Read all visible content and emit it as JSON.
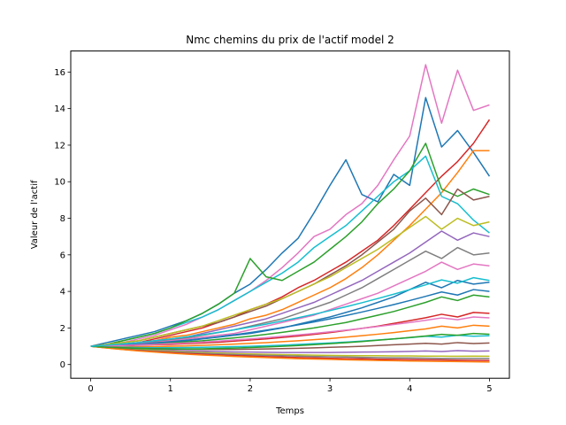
{
  "chart_data": {
    "type": "line",
    "title": "Nmc chemins du prix de l'actif model 2",
    "xlabel": "Temps",
    "ylabel": "Valeur de l'actif",
    "xlim": [
      -0.25,
      5.25
    ],
    "ylim": [
      -0.75,
      17.15
    ],
    "xticks": [
      0,
      1,
      2,
      3,
      4,
      5
    ],
    "yticks": [
      0,
      2,
      4,
      6,
      8,
      10,
      12,
      14,
      16
    ],
    "grid": false,
    "legend": "none",
    "x": [
      0,
      0.2,
      0.4,
      0.6,
      0.8,
      1.0,
      1.2,
      1.4,
      1.6,
      1.8,
      2.0,
      2.2,
      2.4,
      2.6,
      2.8,
      3.0,
      3.2,
      3.4,
      3.6,
      3.8,
      4.0,
      4.2,
      4.4,
      4.6,
      4.8,
      5.0
    ],
    "series": [
      {
        "color": "#e377c2",
        "values": [
          1.0,
          1.1,
          1.2,
          1.4,
          1.6,
          1.9,
          2.2,
          2.6,
          3.0,
          3.5,
          4.0,
          4.6,
          5.3,
          6.1,
          7.0,
          7.4,
          8.2,
          8.8,
          9.8,
          11.2,
          12.5,
          16.4,
          13.2,
          16.1,
          13.9,
          14.2
        ]
      },
      {
        "color": "#1f77b4",
        "values": [
          1.0,
          1.2,
          1.4,
          1.6,
          1.8,
          2.1,
          2.4,
          2.8,
          3.3,
          3.9,
          4.4,
          5.2,
          6.1,
          6.9,
          8.3,
          9.8,
          11.2,
          9.3,
          8.9,
          10.4,
          9.8,
          14.6,
          11.9,
          12.8,
          11.6,
          10.3
        ]
      },
      {
        "color": "#d62728",
        "values": [
          1.0,
          1.0,
          1.1,
          1.2,
          1.4,
          1.6,
          1.8,
          2.0,
          2.3,
          2.6,
          3.0,
          3.3,
          3.7,
          4.2,
          4.6,
          5.1,
          5.6,
          6.2,
          6.8,
          7.6,
          8.5,
          9.4,
          10.3,
          11.1,
          12.1,
          13.4
        ]
      },
      {
        "color": "#ff7f0e",
        "values": [
          1.0,
          1.0,
          1.1,
          1.2,
          1.3,
          1.5,
          1.6,
          1.8,
          2.0,
          2.2,
          2.5,
          2.7,
          3.0,
          3.4,
          3.8,
          4.2,
          4.7,
          5.3,
          6.0,
          6.8,
          7.6,
          8.5,
          9.4,
          10.5,
          11.7,
          11.7
        ]
      },
      {
        "color": "#17becf",
        "values": [
          1.0,
          1.1,
          1.3,
          1.5,
          1.7,
          2.0,
          2.3,
          2.6,
          3.0,
          3.5,
          4.0,
          4.5,
          5.0,
          5.6,
          6.4,
          7.0,
          7.6,
          8.4,
          9.2,
          10.0,
          10.6,
          11.4,
          9.2,
          8.8,
          7.9,
          7.2
        ]
      },
      {
        "color": "#2ca02c",
        "values": [
          1.0,
          1.1,
          1.3,
          1.5,
          1.7,
          2.0,
          2.4,
          2.8,
          3.3,
          3.9,
          5.8,
          4.8,
          4.6,
          5.1,
          5.6,
          6.3,
          7.0,
          7.8,
          8.8,
          9.6,
          10.6,
          12.1,
          9.6,
          9.2,
          9.6,
          9.3
        ]
      },
      {
        "color": "#8c564b",
        "values": [
          1.0,
          1.1,
          1.2,
          1.3,
          1.5,
          1.7,
          1.9,
          2.1,
          2.3,
          2.6,
          2.9,
          3.2,
          3.6,
          4.0,
          4.4,
          4.9,
          5.4,
          6.0,
          6.7,
          7.4,
          8.4,
          9.1,
          8.2,
          9.6,
          9.0,
          9.2
        ]
      },
      {
        "color": "#bcbd22",
        "values": [
          1.0,
          1.1,
          1.2,
          1.3,
          1.5,
          1.7,
          1.9,
          2.1,
          2.4,
          2.7,
          3.0,
          3.3,
          3.6,
          4.0,
          4.4,
          4.8,
          5.3,
          5.8,
          6.3,
          6.9,
          7.5,
          8.1,
          7.4,
          8.0,
          7.6,
          7.8
        ]
      },
      {
        "color": "#9467bd",
        "values": [
          1.0,
          1.05,
          1.1,
          1.2,
          1.3,
          1.4,
          1.5,
          1.7,
          1.9,
          2.1,
          2.3,
          2.5,
          2.8,
          3.1,
          3.4,
          3.8,
          4.2,
          4.6,
          5.1,
          5.6,
          6.1,
          6.7,
          7.3,
          6.8,
          7.2,
          7.0
        ]
      },
      {
        "color": "#7f7f7f",
        "values": [
          1.0,
          1.05,
          1.1,
          1.15,
          1.25,
          1.35,
          1.45,
          1.6,
          1.75,
          1.9,
          2.1,
          2.3,
          2.5,
          2.8,
          3.1,
          3.4,
          3.8,
          4.2,
          4.7,
          5.2,
          5.7,
          6.2,
          5.8,
          6.4,
          6.0,
          6.1
        ]
      },
      {
        "color": "#e377c2",
        "values": [
          1.0,
          1.05,
          1.1,
          1.15,
          1.2,
          1.3,
          1.4,
          1.5,
          1.6,
          1.7,
          1.9,
          2.1,
          2.3,
          2.5,
          2.7,
          3.0,
          3.3,
          3.6,
          3.9,
          4.3,
          4.7,
          5.1,
          5.6,
          5.2,
          5.5,
          5.4
        ]
      },
      {
        "color": "#1f77b4",
        "values": [
          1.0,
          1.0,
          1.05,
          1.1,
          1.15,
          1.2,
          1.3,
          1.4,
          1.5,
          1.6,
          1.7,
          1.85,
          2.0,
          2.2,
          2.4,
          2.6,
          2.85,
          3.1,
          3.4,
          3.7,
          4.1,
          4.5,
          4.2,
          4.6,
          4.4,
          4.5
        ]
      },
      {
        "color": "#2ca02c",
        "values": [
          1.0,
          1.0,
          1.05,
          1.1,
          1.12,
          1.18,
          1.24,
          1.3,
          1.38,
          1.46,
          1.55,
          1.65,
          1.76,
          1.88,
          2.0,
          2.15,
          2.3,
          2.5,
          2.7,
          2.9,
          3.15,
          3.4,
          3.7,
          3.5,
          3.8,
          3.7
        ]
      },
      {
        "color": "#d62728",
        "values": [
          1.0,
          1.0,
          1.02,
          1.05,
          1.08,
          1.1,
          1.14,
          1.18,
          1.22,
          1.28,
          1.34,
          1.4,
          1.48,
          1.56,
          1.65,
          1.75,
          1.86,
          1.98,
          2.1,
          2.25,
          2.4,
          2.56,
          2.75,
          2.6,
          2.85,
          2.8
        ]
      },
      {
        "color": "#ff7f0e",
        "values": [
          1.0,
          0.98,
          0.97,
          0.97,
          0.98,
          1.0,
          1.02,
          1.05,
          1.08,
          1.12,
          1.16,
          1.2,
          1.25,
          1.3,
          1.36,
          1.42,
          1.5,
          1.58,
          1.66,
          1.75,
          1.85,
          1.95,
          2.1,
          2.0,
          2.15,
          2.1
        ]
      },
      {
        "color": "#17becf",
        "values": [
          1.0,
          0.97,
          0.95,
          0.93,
          0.92,
          0.92,
          0.93,
          0.94,
          0.96,
          0.98,
          1.0,
          1.03,
          1.06,
          1.1,
          1.14,
          1.18,
          1.23,
          1.28,
          1.34,
          1.4,
          1.47,
          1.55,
          1.5,
          1.6,
          1.55,
          1.58
        ]
      },
      {
        "color": "#8c564b",
        "values": [
          1.0,
          0.96,
          0.92,
          0.89,
          0.87,
          0.85,
          0.84,
          0.83,
          0.83,
          0.83,
          0.84,
          0.85,
          0.87,
          0.89,
          0.91,
          0.94,
          0.97,
          1.0,
          1.04,
          1.08,
          1.12,
          1.16,
          1.12,
          1.2,
          1.15,
          1.18
        ]
      },
      {
        "color": "#9467bd",
        "values": [
          1.0,
          0.94,
          0.89,
          0.85,
          0.81,
          0.78,
          0.75,
          0.73,
          0.71,
          0.69,
          0.68,
          0.67,
          0.66,
          0.66,
          0.66,
          0.66,
          0.67,
          0.68,
          0.69,
          0.7,
          0.72,
          0.74,
          0.71,
          0.76,
          0.73,
          0.74
        ]
      },
      {
        "color": "#bcbd22",
        "values": [
          1.0,
          0.93,
          0.87,
          0.82,
          0.77,
          0.73,
          0.69,
          0.66,
          0.63,
          0.6,
          0.58,
          0.56,
          0.54,
          0.53,
          0.51,
          0.5,
          0.49,
          0.48,
          0.48,
          0.47,
          0.47,
          0.46,
          0.46,
          0.45,
          0.46,
          0.45
        ]
      },
      {
        "color": "#7f7f7f",
        "values": [
          1.0,
          0.92,
          0.85,
          0.79,
          0.74,
          0.69,
          0.65,
          0.61,
          0.58,
          0.55,
          0.52,
          0.5,
          0.48,
          0.46,
          0.44,
          0.42,
          0.41,
          0.39,
          0.38,
          0.37,
          0.36,
          0.35,
          0.34,
          0.34,
          0.33,
          0.33
        ]
      },
      {
        "color": "#d62728",
        "values": [
          1.0,
          0.91,
          0.83,
          0.76,
          0.7,
          0.65,
          0.6,
          0.56,
          0.52,
          0.49,
          0.46,
          0.43,
          0.41,
          0.38,
          0.36,
          0.34,
          0.32,
          0.31,
          0.29,
          0.28,
          0.27,
          0.26,
          0.25,
          0.24,
          0.23,
          0.22
        ]
      },
      {
        "color": "#ff7f0e",
        "values": [
          1.0,
          0.9,
          0.82,
          0.74,
          0.68,
          0.62,
          0.57,
          0.52,
          0.48,
          0.44,
          0.41,
          0.38,
          0.35,
          0.32,
          0.3,
          0.28,
          0.26,
          0.24,
          0.22,
          0.21,
          0.19,
          0.18,
          0.17,
          0.16,
          0.15,
          0.14
        ]
      },
      {
        "color": "#1f77b4",
        "values": [
          1.0,
          1.03,
          1.07,
          1.12,
          1.18,
          1.25,
          1.33,
          1.42,
          1.52,
          1.63,
          1.75,
          1.88,
          2.02,
          2.17,
          2.33,
          2.5,
          2.68,
          2.87,
          3.07,
          3.28,
          3.5,
          3.73,
          3.97,
          3.8,
          4.1,
          4.0
        ]
      },
      {
        "color": "#e377c2",
        "values": [
          1.0,
          1.02,
          1.04,
          1.07,
          1.1,
          1.14,
          1.18,
          1.23,
          1.28,
          1.34,
          1.4,
          1.47,
          1.54,
          1.62,
          1.7,
          1.79,
          1.88,
          1.98,
          2.08,
          2.19,
          2.3,
          2.42,
          2.55,
          2.45,
          2.6,
          2.55
        ]
      },
      {
        "color": "#2ca02c",
        "values": [
          1.0,
          0.95,
          0.91,
          0.88,
          0.86,
          0.85,
          0.85,
          0.86,
          0.88,
          0.9,
          0.93,
          0.96,
          1.0,
          1.04,
          1.09,
          1.14,
          1.2,
          1.26,
          1.33,
          1.4,
          1.48,
          1.56,
          1.65,
          1.6,
          1.7,
          1.66
        ]
      },
      {
        "color": "#17becf",
        "values": [
          1.0,
          1.06,
          1.13,
          1.21,
          1.3,
          1.4,
          1.51,
          1.63,
          1.76,
          1.9,
          2.05,
          2.21,
          2.38,
          2.56,
          2.75,
          2.95,
          3.16,
          3.38,
          3.61,
          3.85,
          4.1,
          4.36,
          4.63,
          4.45,
          4.75,
          4.6
        ]
      }
    ]
  }
}
